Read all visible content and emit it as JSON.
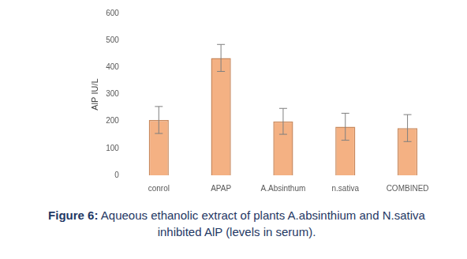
{
  "chart_data": {
    "type": "bar",
    "title": "Figure 6: Aqueous ethanolic extract of plants A.absinthium and N.sativa inhibited AlP (levels in serum).",
    "y_label": "AlP IU/L",
    "categories": [
      "conrol",
      "APAP",
      "A.Absinthum",
      "n.sativa",
      "COMBINED"
    ],
    "values": [
      205,
      435,
      200,
      180,
      175
    ],
    "errors": [
      50,
      50,
      48,
      50,
      50
    ],
    "color": "#f4b183",
    "ylim": [
      0,
      600
    ],
    "yticks": [
      0,
      100,
      200,
      300,
      400,
      500,
      600
    ],
    "grid": false
  }
}
